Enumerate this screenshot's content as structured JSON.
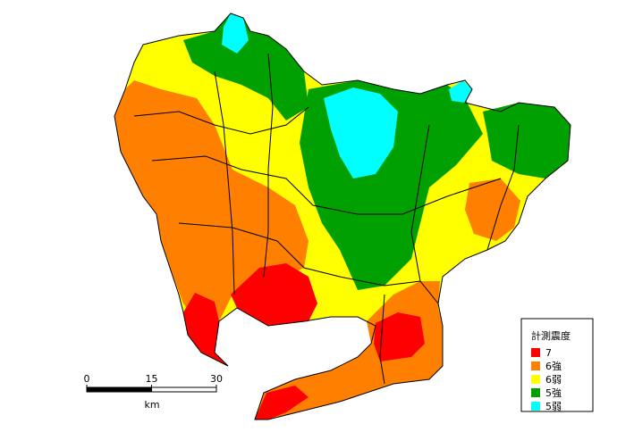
{
  "legend": {
    "title": "計測震度",
    "items": [
      {
        "label": "7",
        "color": "#ff0000"
      },
      {
        "label": "6強",
        "color": "#ff8000"
      },
      {
        "label": "6弱",
        "color": "#ffff00"
      },
      {
        "label": "5強",
        "color": "#00a000"
      },
      {
        "label": "5弱",
        "color": "#00ffff"
      }
    ]
  },
  "scale_bar": {
    "ticks": [
      0,
      15,
      30
    ],
    "unit": "km"
  }
}
